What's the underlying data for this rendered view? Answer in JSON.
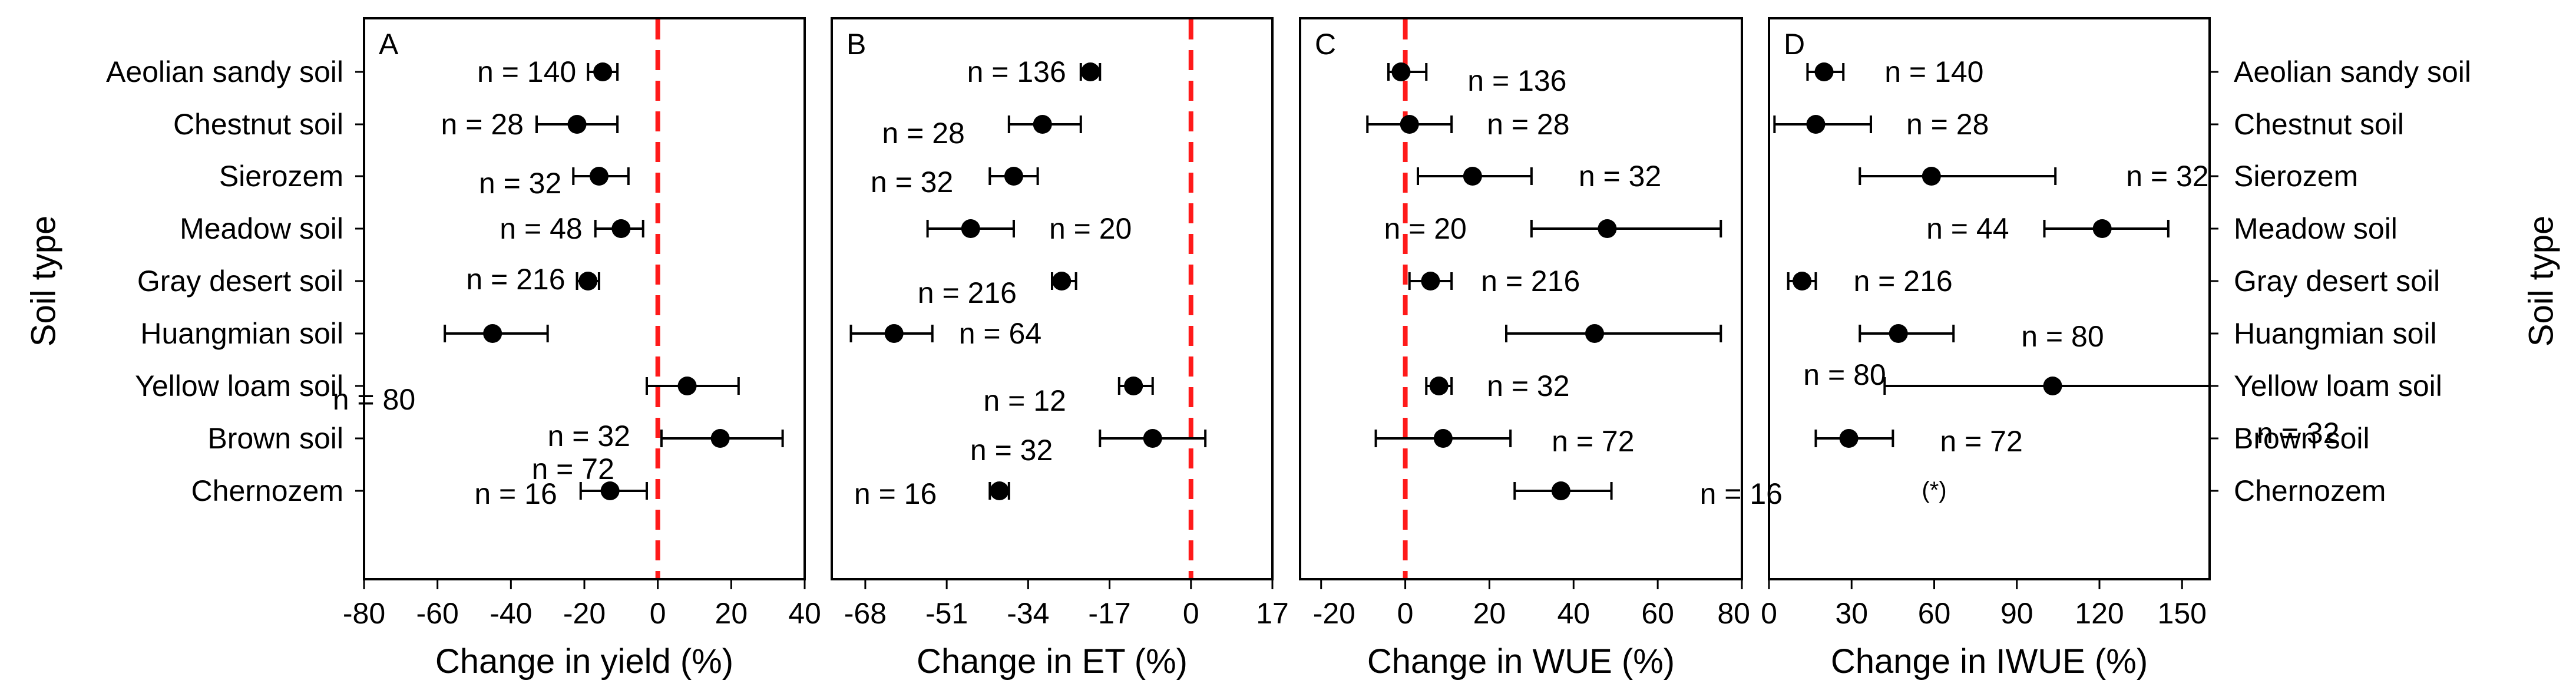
{
  "figure": {
    "left_axis_label": "Soil type",
    "right_axis_label": "Soil type",
    "categories": [
      "Aeolian sandy soil",
      "Chestnut soil",
      "Sierozem",
      "Meadow soil",
      "Gray desert soil",
      "Huangmian soil",
      "Yellow loam soil",
      "Brown soil",
      "Chernozem"
    ],
    "colors": {
      "marker": "#000000",
      "reference_line": "#ff1a1a",
      "frame": "#000000"
    }
  },
  "chart_data": [
    {
      "type": "scatter",
      "panel_label": "A",
      "xlabel": "Change in yield (%)",
      "ylabel": "Soil type",
      "xlim": [
        -80,
        40
      ],
      "xticks": [
        -80,
        -60,
        -40,
        -20,
        0,
        20,
        40
      ],
      "reference_x": 0,
      "points": [
        {
          "category": "Aeolian sandy soil",
          "mean": -15,
          "low": -19,
          "high": -11,
          "n_label": "n = 140"
        },
        {
          "category": "Chestnut soil",
          "mean": -22,
          "low": -33,
          "high": -11,
          "n_label": "n = 28"
        },
        {
          "category": "Sierozem",
          "mean": -16,
          "low": -23,
          "high": -8,
          "n_label": "n = 32"
        },
        {
          "category": "Meadow soil",
          "mean": -10,
          "low": -17,
          "high": -4,
          "n_label": "n = 48"
        },
        {
          "category": "Gray desert soil",
          "mean": -19,
          "low": -22,
          "high": -16,
          "n_label": "n = 216"
        },
        {
          "category": "Huangmian soil",
          "mean": -45,
          "low": -58,
          "high": -30,
          "n_label": "n = 80"
        },
        {
          "category": "Yellow loam soil",
          "mean": 8,
          "low": -3,
          "high": 22,
          "n_label": "n = 32"
        },
        {
          "category": "Brown soil",
          "mean": 17,
          "low": 1,
          "high": 34,
          "n_label": "n = 72"
        },
        {
          "category": "Chernozem",
          "mean": -13,
          "low": -21,
          "high": -3,
          "n_label": "n = 16"
        }
      ]
    },
    {
      "type": "scatter",
      "panel_label": "B",
      "xlabel": "Change in ET (%)",
      "xlim": [
        -75,
        17
      ],
      "xticks": [
        -68,
        -51,
        -34,
        -17,
        0,
        17
      ],
      "reference_x": 0,
      "points": [
        {
          "category": "Aeolian sandy soil",
          "mean": -21,
          "low": -23,
          "high": -19,
          "n_label": "n = 136"
        },
        {
          "category": "Chestnut soil",
          "mean": -31,
          "low": -38,
          "high": -23,
          "n_label": "n = 28"
        },
        {
          "category": "Sierozem",
          "mean": -37,
          "low": -42,
          "high": -32,
          "n_label": "n = 32"
        },
        {
          "category": "Meadow soil",
          "mean": -46,
          "low": -55,
          "high": -37,
          "n_label": "n = 20"
        },
        {
          "category": "Gray desert soil",
          "mean": -27,
          "low": -29,
          "high": -24,
          "n_label": "n = 216"
        },
        {
          "category": "Huangmian soil",
          "mean": -62,
          "low": -71,
          "high": -54,
          "n_label": "n = 64"
        },
        {
          "category": "Yellow loam soil",
          "mean": -12,
          "low": -15,
          "high": -8,
          "n_label": "n = 12"
        },
        {
          "category": "Brown soil",
          "mean": -8,
          "low": -19,
          "high": 3,
          "n_label": "n = 32"
        },
        {
          "category": "Chernozem",
          "mean": -40,
          "low": -42,
          "high": -38,
          "n_label": "n = 16"
        }
      ]
    },
    {
      "type": "scatter",
      "panel_label": "C",
      "xlabel": "Change in WUE (%)",
      "xlim": [
        -25,
        80
      ],
      "xticks": [
        -20,
        0,
        20,
        40,
        60,
        80
      ],
      "reference_x": 0,
      "points": [
        {
          "category": "Aeolian sandy soil",
          "mean": -1,
          "low": -4,
          "high": 5,
          "n_label": "n = 136"
        },
        {
          "category": "Chestnut soil",
          "mean": 1,
          "low": -9,
          "high": 11,
          "n_label": "n = 28"
        },
        {
          "category": "Sierozem",
          "mean": 16,
          "low": 3,
          "high": 30,
          "n_label": "n = 32"
        },
        {
          "category": "Meadow soil",
          "mean": 48,
          "low": 30,
          "high": 75,
          "n_label": "n = 20"
        },
        {
          "category": "Gray desert soil",
          "mean": 6,
          "low": 1,
          "high": 11,
          "n_label": "n = 216"
        },
        {
          "category": "Huangmian soil",
          "mean": 45,
          "low": 24,
          "high": 75,
          "n_label": "n = 80"
        },
        {
          "category": "Yellow loam soil",
          "mean": 8,
          "low": 5,
          "high": 11,
          "n_label": "n = 32"
        },
        {
          "category": "Brown soil",
          "mean": 9,
          "low": -7,
          "high": 25,
          "n_label": "n = 72"
        },
        {
          "category": "Chernozem",
          "mean": 37,
          "low": 26,
          "high": 49,
          "n_label": "n = 16"
        }
      ]
    },
    {
      "type": "scatter",
      "panel_label": "D",
      "xlabel": "Change in IWUE (%)",
      "xlim": [
        0,
        160
      ],
      "xticks": [
        0,
        30,
        60,
        90,
        120,
        150
      ],
      "annotation": "(*)",
      "points": [
        {
          "category": "Aeolian sandy soil",
          "mean": 20,
          "low": 14,
          "high": 27,
          "n_label": "n = 140"
        },
        {
          "category": "Chestnut soil",
          "mean": 17,
          "low": 2,
          "high": 37,
          "n_label": "n = 28"
        },
        {
          "category": "Sierozem",
          "mean": 59,
          "low": 33,
          "high": 104,
          "n_label": "n = 32"
        },
        {
          "category": "Meadow soil",
          "mean": 121,
          "low": 100,
          "high": 145,
          "n_label": "n = 44"
        },
        {
          "category": "Gray desert soil",
          "mean": 12,
          "low": 7,
          "high": 17,
          "n_label": "n = 216"
        },
        {
          "category": "Huangmian soil",
          "mean": 47,
          "low": 33,
          "high": 67,
          "n_label": "n = 80"
        },
        {
          "category": "Yellow loam soil",
          "mean": 103,
          "low": 42,
          "high": 160,
          "n_label": "n = 32"
        },
        {
          "category": "Brown soil",
          "mean": 29,
          "low": 17,
          "high": 45,
          "n_label": "n = 72"
        }
      ]
    }
  ]
}
